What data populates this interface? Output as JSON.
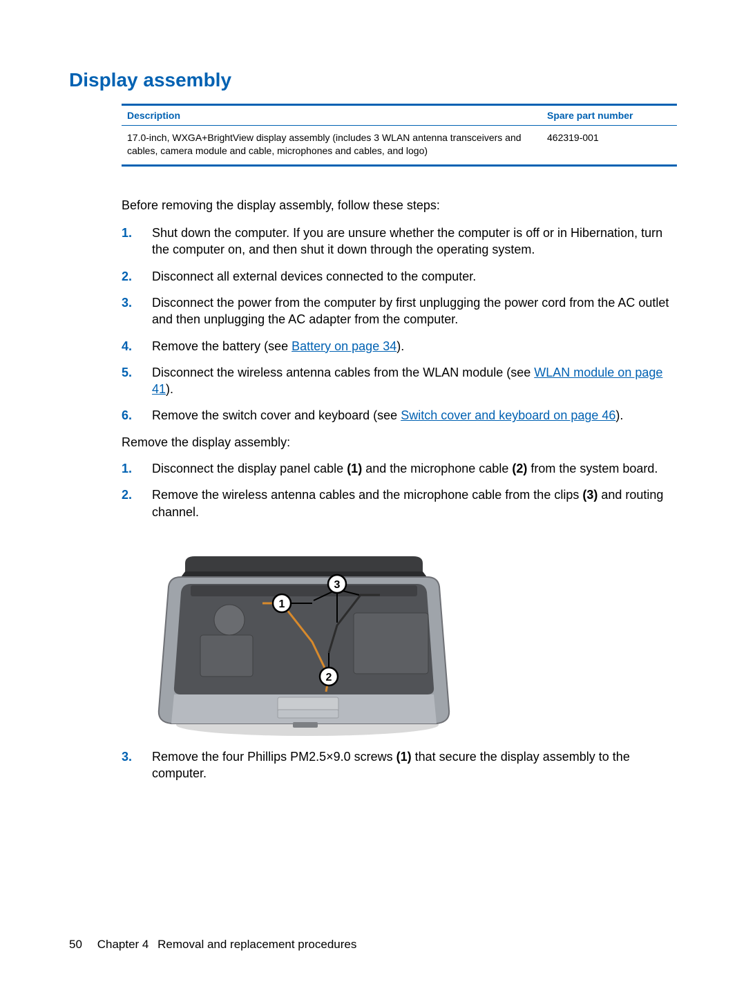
{
  "colors": {
    "brand_blue": "#0061b2",
    "text_black": "#000000",
    "page_bg": "#ffffff",
    "laptop_body": "#9fa4aa",
    "laptop_body_dark": "#6e7075",
    "laptop_lid": "#3b3c3e",
    "laptop_internal": "#515357",
    "touchpad": "#c9cccf",
    "callout_fill": "#ffffff",
    "callout_stroke": "#000000",
    "cable_orange": "#d88a2c"
  },
  "typography": {
    "title_fontsize": 28,
    "body_fontsize": 18,
    "table_fontsize": 14,
    "footer_fontsize": 17
  },
  "title": "Display assembly",
  "table": {
    "headers": {
      "description": "Description",
      "spn": "Spare part number"
    },
    "row": {
      "description": "17.0-inch, WXGA+BrightView display assembly (includes 3 WLAN antenna transceivers and cables, camera module and cable, microphones and cables, and logo)",
      "spn": "462319-001"
    }
  },
  "intro1": "Before removing the display assembly, follow these steps:",
  "pre_steps": [
    {
      "text_parts": [
        "Shut down the computer. If you are unsure whether the computer is off or in Hibernation, turn the computer on, and then shut it down through the operating system."
      ]
    },
    {
      "text_parts": [
        "Disconnect all external devices connected to the computer."
      ]
    },
    {
      "text_parts": [
        "Disconnect the power from the computer by first unplugging the power cord from the AC outlet and then unplugging the AC adapter from the computer."
      ]
    },
    {
      "text_parts": [
        "Remove the battery (see ",
        {
          "link": "Battery on page 34"
        },
        ")."
      ]
    },
    {
      "text_parts": [
        "Disconnect the wireless antenna cables from the WLAN module (see ",
        {
          "link": "WLAN module on page 41"
        },
        ")."
      ]
    },
    {
      "text_parts": [
        "Remove the switch cover and keyboard (see ",
        {
          "link": "Switch cover and keyboard on page 46"
        },
        ")."
      ]
    }
  ],
  "intro2": "Remove the display assembly:",
  "main_steps": [
    {
      "text_parts": [
        "Disconnect the display panel cable ",
        {
          "bold": "(1)"
        },
        " and the microphone cable ",
        {
          "bold": "(2)"
        },
        " from the system board."
      ]
    },
    {
      "text_parts": [
        "Remove the wireless antenna cables and the microphone cable from the clips ",
        {
          "bold": "(3)"
        },
        " and routing channel."
      ]
    }
  ],
  "post_fig_step": {
    "number": "3.",
    "text_parts": [
      "Remove the four Phillips PM2.5×9.0 screws ",
      {
        "bold": "(1)"
      },
      " that secure the display assembly to the computer."
    ]
  },
  "figure": {
    "callouts": [
      "1",
      "2",
      "3"
    ],
    "alt": "Top view of open laptop with keyboard removed showing cable callouts 1, 2, 3"
  },
  "footer": {
    "page_number": "50",
    "chapter_label": "Chapter 4",
    "chapter_name": "Removal and replacement procedures"
  }
}
